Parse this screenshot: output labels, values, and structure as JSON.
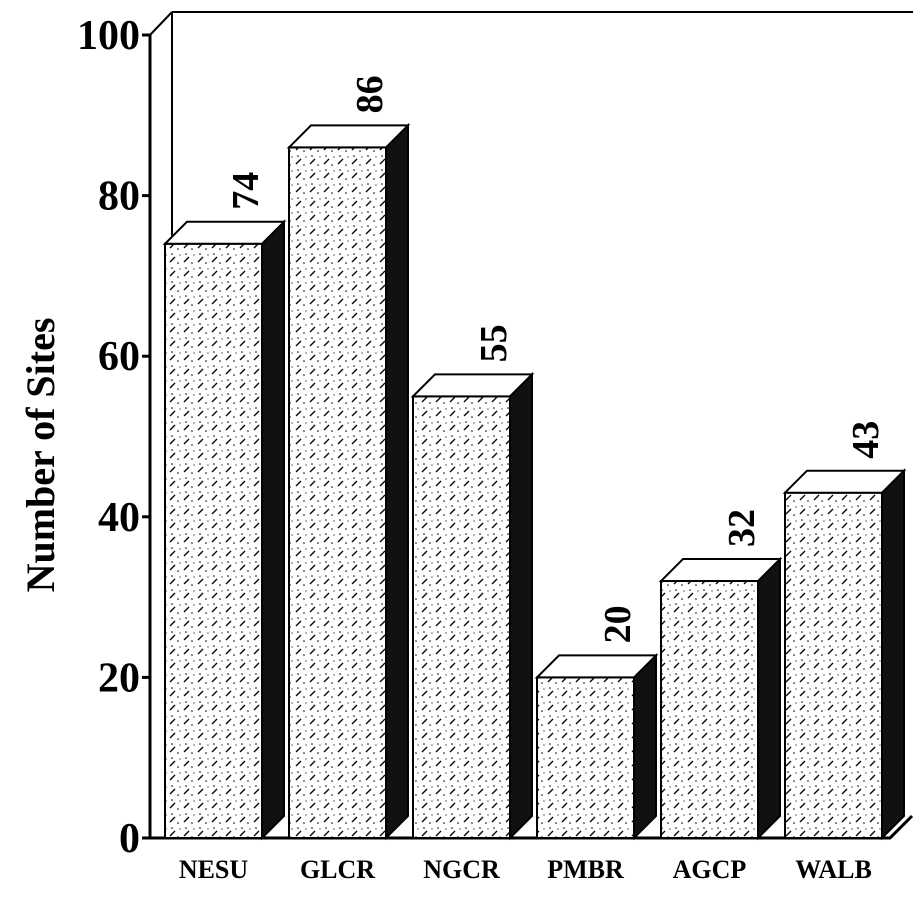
{
  "chart_data": {
    "type": "bar3d",
    "y_label": "Number of Sites",
    "categories": [
      "NESU",
      "GLCR",
      "NGCR",
      "PMBR",
      "AGCP",
      "WALB"
    ],
    "values": [
      74,
      86,
      55,
      20,
      32,
      43
    ],
    "ylim": [
      0,
      100
    ],
    "yticks": [
      0,
      20,
      40,
      60,
      80,
      100
    ]
  }
}
